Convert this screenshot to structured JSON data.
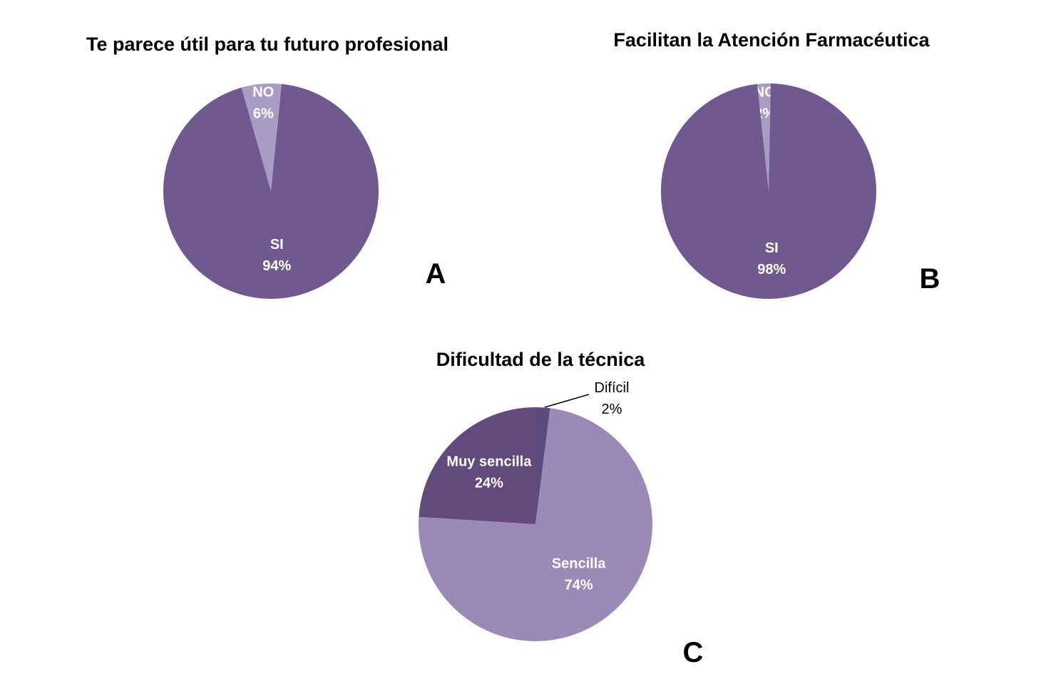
{
  "chart_data": [
    {
      "type": "pie",
      "title": "Te parece útil para tu futuro profesional",
      "panel": "A",
      "slices": [
        {
          "label": "NO",
          "value": 6,
          "value_label": "6%",
          "color": "#a89cc4",
          "text_color": "#ffffff"
        },
        {
          "label": "SI",
          "value": 94,
          "value_label": "94%",
          "color": "#70598f",
          "text_color": "#ffffff"
        }
      ]
    },
    {
      "type": "pie",
      "title": "Facilitan la Atención Farmacéutica",
      "panel": "B",
      "slices": [
        {
          "label": "NO",
          "value": 2,
          "value_label": "2%",
          "color": "#a89cc4",
          "text_color": "#ffffff"
        },
        {
          "label": "SI",
          "value": 98,
          "value_label": "98%",
          "color": "#70598f",
          "text_color": "#ffffff"
        }
      ]
    },
    {
      "type": "pie",
      "title": "Dificultad de la técnica",
      "panel": "C",
      "slices": [
        {
          "label": "Difícil",
          "value": 2,
          "value_label": "2%",
          "color": "#5e4a7f",
          "text_color": "#000000",
          "outside": true
        },
        {
          "label": "Sencilla",
          "value": 74,
          "value_label": "74%",
          "color": "#9b8ab5",
          "text_color": "#ffffff"
        },
        {
          "label": "Muy sencilla",
          "value": 24,
          "value_label": "24%",
          "color": "#624a7d",
          "text_color": "#ffffff"
        }
      ]
    }
  ]
}
